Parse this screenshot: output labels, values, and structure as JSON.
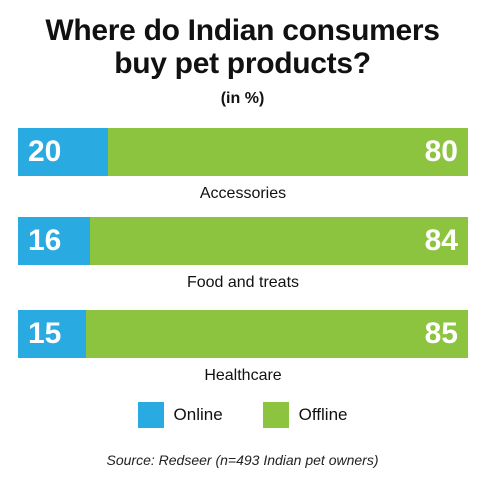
{
  "chart_data": {
    "type": "bar",
    "orientation": "horizontal-stacked",
    "title": "Where do Indian consumers buy pet products?",
    "subtitle": "(in %)",
    "categories": [
      "Accessories",
      "Food and treats",
      "Healthcare"
    ],
    "series": [
      {
        "name": "Online",
        "values": [
          20,
          16,
          15
        ],
        "color": "#29aae1"
      },
      {
        "name": "Offline",
        "values": [
          80,
          84,
          85
        ],
        "color": "#8dc43f"
      }
    ],
    "xlim": [
      0,
      100
    ],
    "legend_placement": "bottom",
    "grid": false,
    "source": "Source: Redseer (n=493 Indian pet owners)"
  }
}
